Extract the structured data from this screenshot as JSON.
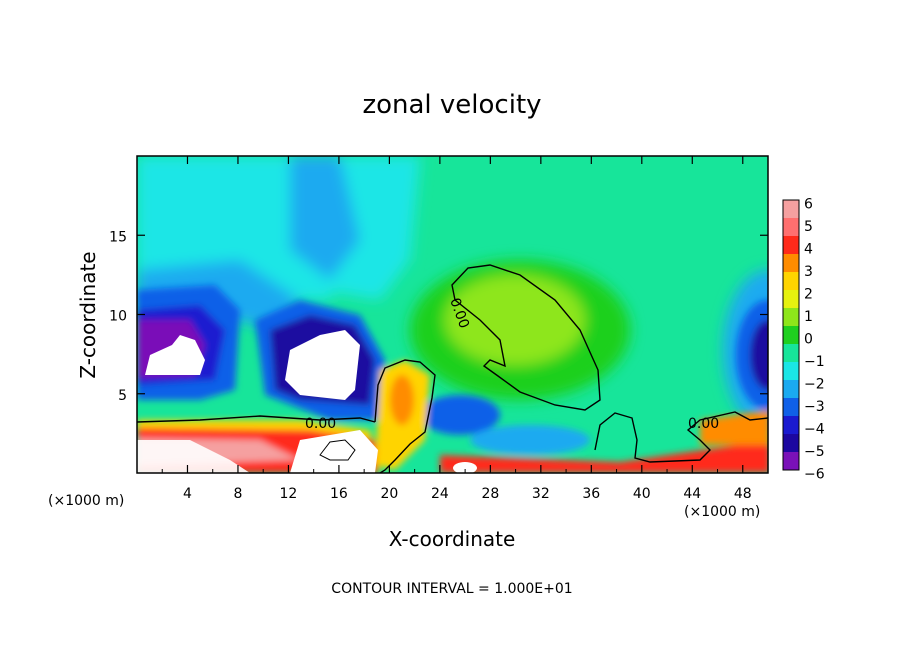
{
  "chart_data": {
    "type": "heatmap",
    "title": "zonal velocity",
    "xlabel": "X-coordinate",
    "ylabel": "Z-coordinate",
    "x_unit_left": "(×1000 m)",
    "x_unit_right": "(×1000 m)",
    "xlim": [
      0,
      50
    ],
    "ylim": [
      0,
      20
    ],
    "x_ticks": [
      "4",
      "8",
      "12",
      "16",
      "20",
      "24",
      "28",
      "32",
      "36",
      "40",
      "44",
      "48"
    ],
    "y_ticks": [
      "5",
      "10",
      "15"
    ],
    "footer": "CONTOUR INTERVAL = 1.000E+01",
    "contour_labels": [
      "0.00",
      "0.00",
      "0.00"
    ],
    "colorbar": {
      "labels": [
        "6",
        "5",
        "4",
        "3",
        "2",
        "1",
        "0",
        "−1",
        "−2",
        "−3",
        "−4",
        "−5",
        "−6"
      ],
      "colors": [
        "#f5a0a0",
        "#ff6f6f",
        "#ff2a1a",
        "#ff8c00",
        "#ffd400",
        "#e6f20f",
        "#8ee61a",
        "#1fd01f",
        "#17e59a",
        "#1ae6e6",
        "#1aaaf0",
        "#1060e8",
        "#1a1ad0",
        "#1c07a0",
        "#7a11b8"
      ]
    },
    "features": [
      {
        "name": "upper-westward-jet",
        "x": [
          0,
          14
        ],
        "z": [
          7,
          12
        ],
        "value": "-6"
      },
      {
        "name": "upper-westward-jet-2",
        "x": [
          11,
          19
        ],
        "z": [
          5,
          13
        ],
        "value": "-6"
      },
      {
        "name": "upper-westward-jet-3",
        "x": [
          46,
          50
        ],
        "z": [
          4,
          12
        ],
        "value": "-5"
      },
      {
        "name": "eastward-surface-layer",
        "x": [
          0,
          19
        ],
        "z": [
          0,
          3
        ],
        "value": "5"
      },
      {
        "name": "positive-cell",
        "x": [
          25,
          37
        ],
        "z": [
          4,
          13
        ],
        "value": "1"
      }
    ]
  }
}
